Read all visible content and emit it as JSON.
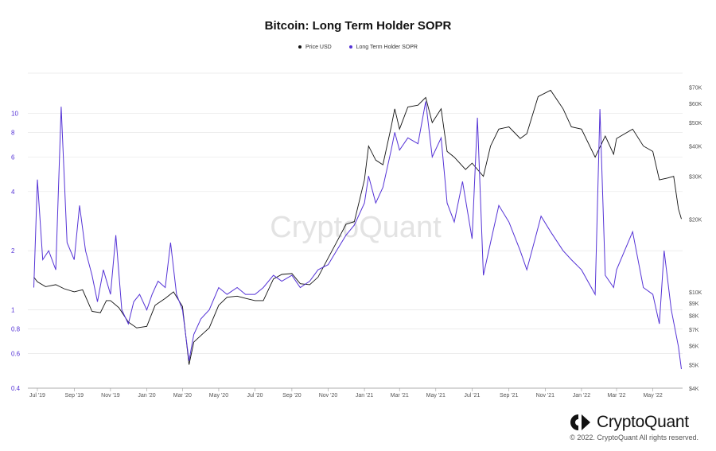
{
  "title": "Bitcoin: Long Term Holder SOPR",
  "watermark": "CryptoQuant",
  "logo_text": "CryptoQuant",
  "copyright": "© 2022. CryptoQuant All rights reserved.",
  "colors": {
    "price": "#111111",
    "sopr": "#5533d6",
    "grid": "#e6e6e6",
    "watermark": "#e3e3e3"
  },
  "chart_data": {
    "type": "line",
    "title": "Bitcoin: Long Term Holder SOPR",
    "legend_placement": "top-center",
    "grid": true,
    "series": [
      {
        "name": "Price USD",
        "axis": "right",
        "scale": "log",
        "points": [
          [
            "2019-06-25",
            11500
          ],
          [
            "2019-07-01",
            11000
          ],
          [
            "2019-07-15",
            10500
          ],
          [
            "2019-08-01",
            10700
          ],
          [
            "2019-08-15",
            10300
          ],
          [
            "2019-09-01",
            10000
          ],
          [
            "2019-09-15",
            10200
          ],
          [
            "2019-10-01",
            8300
          ],
          [
            "2019-10-15",
            8200
          ],
          [
            "2019-10-25",
            9200
          ],
          [
            "2019-11-01",
            9200
          ],
          [
            "2019-11-15",
            8600
          ],
          [
            "2019-12-01",
            7500
          ],
          [
            "2019-12-15",
            7100
          ],
          [
            "2020-01-01",
            7200
          ],
          [
            "2020-01-15",
            8800
          ],
          [
            "2020-02-01",
            9400
          ],
          [
            "2020-02-15",
            10000
          ],
          [
            "2020-03-01",
            8700
          ],
          [
            "2020-03-12",
            5000
          ],
          [
            "2020-03-20",
            6200
          ],
          [
            "2020-04-01",
            6600
          ],
          [
            "2020-04-15",
            7100
          ],
          [
            "2020-05-01",
            8800
          ],
          [
            "2020-05-15",
            9500
          ],
          [
            "2020-06-01",
            9600
          ],
          [
            "2020-06-15",
            9400
          ],
          [
            "2020-07-01",
            9200
          ],
          [
            "2020-07-15",
            9200
          ],
          [
            "2020-08-01",
            11300
          ],
          [
            "2020-08-15",
            11800
          ],
          [
            "2020-09-01",
            11900
          ],
          [
            "2020-09-15",
            10800
          ],
          [
            "2020-10-01",
            10700
          ],
          [
            "2020-10-15",
            11500
          ],
          [
            "2020-11-01",
            13800
          ],
          [
            "2020-11-15",
            16000
          ],
          [
            "2020-12-01",
            19000
          ],
          [
            "2020-12-15",
            19500
          ],
          [
            "2021-01-01",
            29000
          ],
          [
            "2021-01-08",
            40000
          ],
          [
            "2021-01-20",
            35000
          ],
          [
            "2021-02-01",
            33500
          ],
          [
            "2021-02-15",
            48000
          ],
          [
            "2021-02-21",
            57000
          ],
          [
            "2021-03-01",
            47000
          ],
          [
            "2021-03-15",
            58000
          ],
          [
            "2021-04-01",
            59000
          ],
          [
            "2021-04-14",
            63500
          ],
          [
            "2021-04-25",
            50000
          ],
          [
            "2021-05-10",
            57000
          ],
          [
            "2021-05-20",
            38000
          ],
          [
            "2021-06-01",
            36000
          ],
          [
            "2021-06-20",
            32000
          ],
          [
            "2021-07-01",
            34000
          ],
          [
            "2021-07-20",
            30000
          ],
          [
            "2021-08-01",
            40000
          ],
          [
            "2021-08-15",
            47000
          ],
          [
            "2021-09-01",
            48000
          ],
          [
            "2021-09-20",
            43000
          ],
          [
            "2021-10-01",
            45000
          ],
          [
            "2021-10-20",
            64000
          ],
          [
            "2021-11-10",
            68000
          ],
          [
            "2021-12-01",
            57000
          ],
          [
            "2021-12-15",
            48000
          ],
          [
            "2022-01-01",
            47000
          ],
          [
            "2022-01-24",
            36000
          ],
          [
            "2022-02-10",
            44000
          ],
          [
            "2022-02-24",
            37000
          ],
          [
            "2022-03-01",
            43000
          ],
          [
            "2022-03-28",
            47000
          ],
          [
            "2022-04-15",
            40000
          ],
          [
            "2022-05-01",
            38000
          ],
          [
            "2022-05-12",
            29000
          ],
          [
            "2022-05-25",
            29500
          ],
          [
            "2022-06-05",
            30000
          ],
          [
            "2022-06-13",
            22000
          ],
          [
            "2022-06-18",
            20000
          ]
        ]
      },
      {
        "name": "Long Term Holder SOPR",
        "axis": "left",
        "scale": "log",
        "points": [
          [
            "2019-06-25",
            1.3
          ],
          [
            "2019-07-01",
            4.6
          ],
          [
            "2019-07-10",
            1.8
          ],
          [
            "2019-07-20",
            2.0
          ],
          [
            "2019-08-01",
            1.6
          ],
          [
            "2019-08-10",
            10.8
          ],
          [
            "2019-08-20",
            2.2
          ],
          [
            "2019-09-01",
            1.8
          ],
          [
            "2019-09-10",
            3.4
          ],
          [
            "2019-09-20",
            2.0
          ],
          [
            "2019-10-01",
            1.5
          ],
          [
            "2019-10-10",
            1.1
          ],
          [
            "2019-10-20",
            1.6
          ],
          [
            "2019-11-01",
            1.2
          ],
          [
            "2019-11-10",
            2.4
          ],
          [
            "2019-11-20",
            1.0
          ],
          [
            "2019-12-01",
            0.85
          ],
          [
            "2019-12-10",
            1.1
          ],
          [
            "2019-12-20",
            1.2
          ],
          [
            "2020-01-01",
            1.0
          ],
          [
            "2020-01-10",
            1.2
          ],
          [
            "2020-01-20",
            1.4
          ],
          [
            "2020-02-01",
            1.3
          ],
          [
            "2020-02-10",
            2.2
          ],
          [
            "2020-02-20",
            1.2
          ],
          [
            "2020-03-01",
            1.0
          ],
          [
            "2020-03-12",
            0.55
          ],
          [
            "2020-03-20",
            0.75
          ],
          [
            "2020-04-01",
            0.9
          ],
          [
            "2020-04-15",
            1.0
          ],
          [
            "2020-05-01",
            1.3
          ],
          [
            "2020-05-15",
            1.2
          ],
          [
            "2020-06-01",
            1.3
          ],
          [
            "2020-06-15",
            1.2
          ],
          [
            "2020-07-01",
            1.2
          ],
          [
            "2020-07-15",
            1.3
          ],
          [
            "2020-08-01",
            1.5
          ],
          [
            "2020-08-15",
            1.4
          ],
          [
            "2020-09-01",
            1.5
          ],
          [
            "2020-09-15",
            1.3
          ],
          [
            "2020-10-01",
            1.4
          ],
          [
            "2020-10-15",
            1.6
          ],
          [
            "2020-11-01",
            1.7
          ],
          [
            "2020-11-15",
            2.0
          ],
          [
            "2020-12-01",
            2.4
          ],
          [
            "2020-12-15",
            2.7
          ],
          [
            "2021-01-01",
            3.5
          ],
          [
            "2021-01-08",
            4.8
          ],
          [
            "2021-01-20",
            3.5
          ],
          [
            "2021-02-01",
            4.2
          ],
          [
            "2021-02-15",
            6.5
          ],
          [
            "2021-02-21",
            8.0
          ],
          [
            "2021-03-01",
            6.5
          ],
          [
            "2021-03-15",
            7.5
          ],
          [
            "2021-04-01",
            7.0
          ],
          [
            "2021-04-14",
            11.5
          ],
          [
            "2021-04-25",
            6.0
          ],
          [
            "2021-05-10",
            7.5
          ],
          [
            "2021-05-20",
            3.5
          ],
          [
            "2021-06-01",
            2.8
          ],
          [
            "2021-06-15",
            4.5
          ],
          [
            "2021-07-01",
            2.3
          ],
          [
            "2021-07-10",
            9.5
          ],
          [
            "2021-07-20",
            1.5
          ],
          [
            "2021-08-01",
            2.2
          ],
          [
            "2021-08-15",
            3.4
          ],
          [
            "2021-09-01",
            2.8
          ],
          [
            "2021-09-20",
            2.0
          ],
          [
            "2021-10-01",
            1.6
          ],
          [
            "2021-10-15",
            2.3
          ],
          [
            "2021-10-25",
            3.0
          ],
          [
            "2021-11-10",
            2.5
          ],
          [
            "2021-12-01",
            2.0
          ],
          [
            "2021-12-15",
            1.8
          ],
          [
            "2022-01-01",
            1.6
          ],
          [
            "2022-01-24",
            1.2
          ],
          [
            "2022-02-01",
            10.5
          ],
          [
            "2022-02-10",
            1.5
          ],
          [
            "2022-02-24",
            1.3
          ],
          [
            "2022-03-01",
            1.6
          ],
          [
            "2022-03-28",
            2.5
          ],
          [
            "2022-04-15",
            1.3
          ],
          [
            "2022-05-01",
            1.2
          ],
          [
            "2022-05-12",
            0.85
          ],
          [
            "2022-05-20",
            2.0
          ],
          [
            "2022-06-01",
            1.0
          ],
          [
            "2022-06-13",
            0.65
          ],
          [
            "2022-06-18",
            0.5
          ]
        ]
      }
    ],
    "x_axis": {
      "type": "date",
      "range": [
        "2019-06-15",
        "2022-06-20"
      ],
      "tick_labels": [
        "Jul '19",
        "Sep '19",
        "Nov '19",
        "Jan '20",
        "Mar '20",
        "May '20",
        "Jul '20",
        "Sep '20",
        "Nov '20",
        "Jan '21",
        "Mar '21",
        "May '21",
        "Jul '21",
        "Sep '21",
        "Nov '21",
        "Jan '22",
        "Mar '22",
        "May '22"
      ],
      "tick_dates": [
        "2019-07-01",
        "2019-09-01",
        "2019-11-01",
        "2020-01-01",
        "2020-03-01",
        "2020-05-01",
        "2020-07-01",
        "2020-09-01",
        "2020-11-01",
        "2021-01-01",
        "2021-03-01",
        "2021-05-01",
        "2021-07-01",
        "2021-09-01",
        "2021-11-01",
        "2022-01-01",
        "2022-03-01",
        "2022-05-01"
      ]
    },
    "y_left": {
      "scale": "log",
      "range": [
        0.4,
        16
      ],
      "ticks": [
        0.4,
        0.6,
        0.8,
        1,
        2,
        4,
        6,
        8,
        10
      ],
      "tick_labels": [
        "0.4",
        "0.6",
        "0.8",
        "1",
        "2",
        "4",
        "6",
        "8",
        "10"
      ]
    },
    "y_right": {
      "scale": "log",
      "range": [
        4000,
        80000
      ],
      "ticks": [
        4000,
        5000,
        6000,
        7000,
        8000,
        9000,
        10000,
        20000,
        30000,
        40000,
        50000,
        60000,
        70000
      ],
      "tick_labels": [
        "$4K",
        "$5K",
        "$6K",
        "$7K",
        "$8K",
        "$9K",
        "$10K",
        "$20K",
        "$30K",
        "$40K",
        "$50K",
        "$60K",
        "$70K"
      ]
    }
  }
}
